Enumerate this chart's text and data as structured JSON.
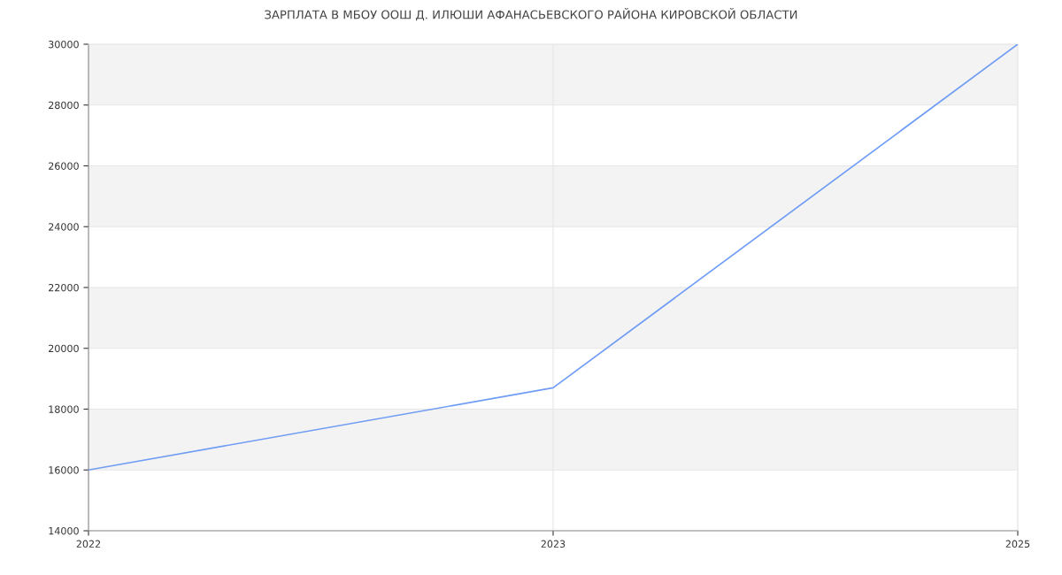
{
  "chart_data": {
    "type": "line",
    "title": "ЗАРПЛАТА В МБОУ ООШ Д. ИЛЮШИ АФАНАСЬЕВСКОГО РАЙОНА КИРОВСКОЙ ОБЛАСТИ",
    "categories": [
      "2022",
      "2023",
      "2025"
    ],
    "series": [
      {
        "color": "#6f9cf5",
        "values": [
          16000,
          18700,
          30000
        ]
      }
    ],
    "ylim": [
      14000,
      30000
    ],
    "yticks": [
      14000,
      16000,
      18000,
      20000,
      22000,
      24000,
      26000,
      28000,
      30000
    ],
    "grid": true,
    "marker": "none",
    "line_style": "solid"
  }
}
